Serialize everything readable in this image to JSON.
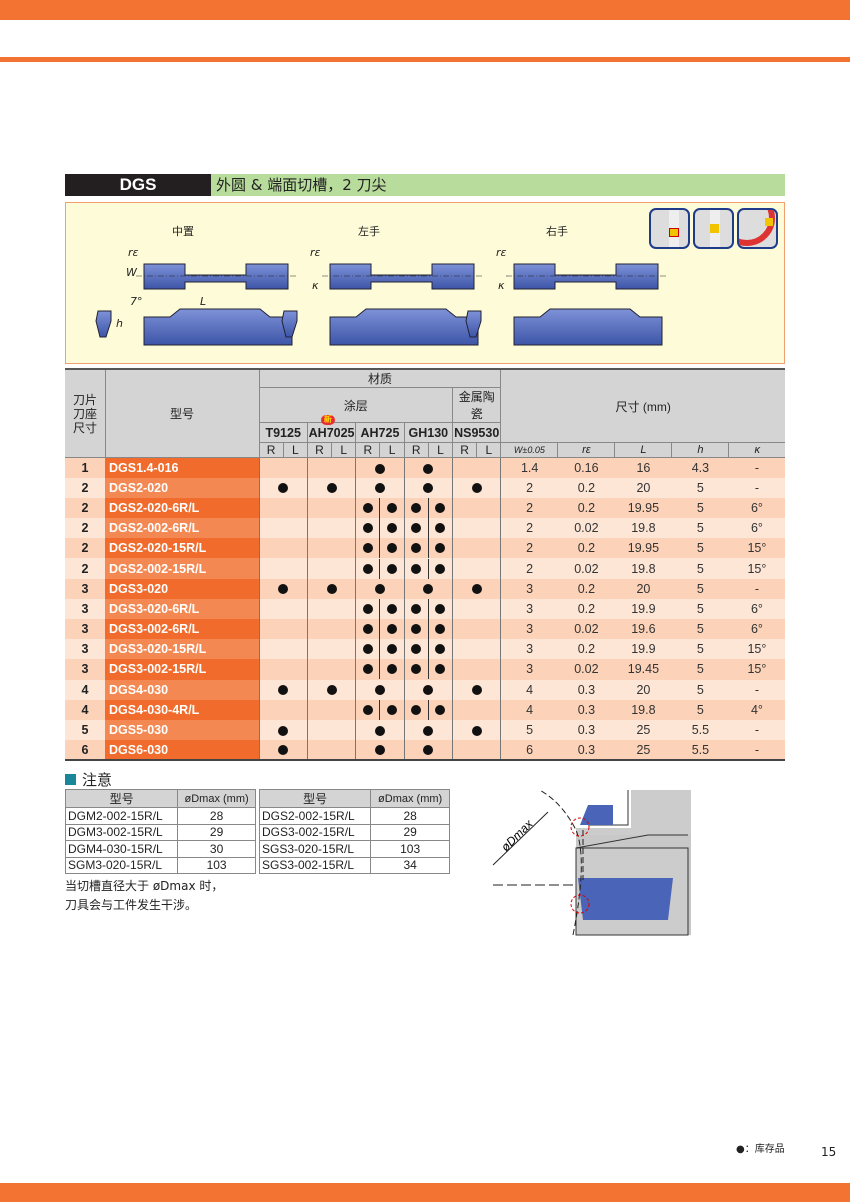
{
  "title": {
    "code": "DGS",
    "description": "外圆 & 端面切槽，2 刀尖"
  },
  "illustration": {
    "views": [
      "中置",
      "左手",
      "右手"
    ],
    "dim_labels": {
      "re": "rε",
      "w": "W",
      "kappa": "κ",
      "angle": "7°",
      "l": "L",
      "h": "h"
    },
    "icons": [
      "external-grooving-icon",
      "face-grooving-icon",
      "curved-grooving-icon"
    ]
  },
  "table": {
    "header": {
      "size": "刀片\n刀座\n尺寸",
      "model": "型号",
      "material": "材质",
      "coating": "涂层",
      "cermet": "金属陶瓷",
      "new_badge": "新",
      "grades": [
        "T9125",
        "AH7025",
        "AH725",
        "GH130",
        "NS9530"
      ],
      "r": "R",
      "l": "L",
      "dims": "尺寸 (mm)",
      "dim_cols": [
        "W±0.05",
        "rε",
        "L",
        "h",
        "κ"
      ]
    },
    "rows": [
      {
        "size": "1",
        "model": "DGS1.4-016",
        "grades": [
          "",
          "",
          "C",
          "C",
          ""
        ],
        "w": "1.4",
        "re": "0.16",
        "l": "16",
        "h": "4.3",
        "k": "-"
      },
      {
        "size": "2",
        "model": "DGS2-020",
        "grades": [
          "C",
          "C",
          "C",
          "C",
          "C"
        ],
        "w": "2",
        "re": "0.2",
        "l": "20",
        "h": "5",
        "k": "-"
      },
      {
        "size": "2",
        "model": "DGS2-020-6R/L",
        "grades": [
          "",
          "",
          "RL",
          "RL",
          ""
        ],
        "w": "2",
        "re": "0.2",
        "l": "19.95",
        "h": "5",
        "k": "6°"
      },
      {
        "size": "2",
        "model": "DGS2-002-6R/L",
        "grades": [
          "",
          "",
          "RL",
          "RL",
          ""
        ],
        "w": "2",
        "re": "0.02",
        "l": "19.8",
        "h": "5",
        "k": "6°"
      },
      {
        "size": "2",
        "model": "DGS2-020-15R/L",
        "grades": [
          "",
          "",
          "RL",
          "RL",
          ""
        ],
        "w": "2",
        "re": "0.2",
        "l": "19.95",
        "h": "5",
        "k": "15°"
      },
      {
        "size": "2",
        "model": "DGS2-002-15R/L",
        "grades": [
          "",
          "",
          "RL",
          "RL",
          ""
        ],
        "w": "2",
        "re": "0.02",
        "l": "19.8",
        "h": "5",
        "k": "15°"
      },
      {
        "size": "3",
        "model": "DGS3-020",
        "grades": [
          "C",
          "C",
          "C",
          "C",
          "C"
        ],
        "w": "3",
        "re": "0.2",
        "l": "20",
        "h": "5",
        "k": "-"
      },
      {
        "size": "3",
        "model": "DGS3-020-6R/L",
        "grades": [
          "",
          "",
          "RL",
          "RL",
          ""
        ],
        "w": "3",
        "re": "0.2",
        "l": "19.9",
        "h": "5",
        "k": "6°"
      },
      {
        "size": "3",
        "model": "DGS3-002-6R/L",
        "grades": [
          "",
          "",
          "RL",
          "RL",
          ""
        ],
        "w": "3",
        "re": "0.02",
        "l": "19.6",
        "h": "5",
        "k": "6°"
      },
      {
        "size": "3",
        "model": "DGS3-020-15R/L",
        "grades": [
          "",
          "",
          "RL",
          "RL",
          ""
        ],
        "w": "3",
        "re": "0.2",
        "l": "19.9",
        "h": "5",
        "k": "15°"
      },
      {
        "size": "3",
        "model": "DGS3-002-15R/L",
        "grades": [
          "",
          "",
          "RL",
          "RL",
          ""
        ],
        "w": "3",
        "re": "0.02",
        "l": "19.45",
        "h": "5",
        "k": "15°"
      },
      {
        "size": "4",
        "model": "DGS4-030",
        "grades": [
          "C",
          "C",
          "C",
          "C",
          "C"
        ],
        "w": "4",
        "re": "0.3",
        "l": "20",
        "h": "5",
        "k": "-"
      },
      {
        "size": "4",
        "model": "DGS4-030-4R/L",
        "grades": [
          "",
          "",
          "RL",
          "RL",
          ""
        ],
        "w": "4",
        "re": "0.3",
        "l": "19.8",
        "h": "5",
        "k": "4°"
      },
      {
        "size": "5",
        "model": "DGS5-030",
        "grades": [
          "C",
          "",
          "C",
          "C",
          "C"
        ],
        "w": "5",
        "re": "0.3",
        "l": "25",
        "h": "5.5",
        "k": "-"
      },
      {
        "size": "6",
        "model": "DGS6-030",
        "grades": [
          "C",
          "",
          "C",
          "C",
          ""
        ],
        "w": "6",
        "re": "0.3",
        "l": "25",
        "h": "5.5",
        "k": "-"
      }
    ]
  },
  "note": {
    "heading": "注意",
    "col_model": "型号",
    "col_dmax": "øDmax (mm)",
    "left": [
      [
        "DGM2-002-15R/L",
        "28"
      ],
      [
        "DGM3-002-15R/L",
        "29"
      ],
      [
        "DGM4-030-15R/L",
        "30"
      ],
      [
        "SGM3-020-15R/L",
        "103"
      ]
    ],
    "right": [
      [
        "DGS2-002-15R/L",
        "28"
      ],
      [
        "DGS3-002-15R/L",
        "29"
      ],
      [
        "SGS3-020-15R/L",
        "103"
      ],
      [
        "SGS3-002-15R/L",
        "34"
      ]
    ],
    "text1": "当切槽直径大于 øDmax 时，",
    "text2": "刀具会与工件发生干涉。",
    "diagram_label": "øDmax"
  },
  "footer": {
    "legend": "●：库存品",
    "page": "15"
  },
  "colors": {
    "brand_orange": "#f37432",
    "title_green": "#b8dc9c",
    "insert_blue": "#4a64b8"
  }
}
